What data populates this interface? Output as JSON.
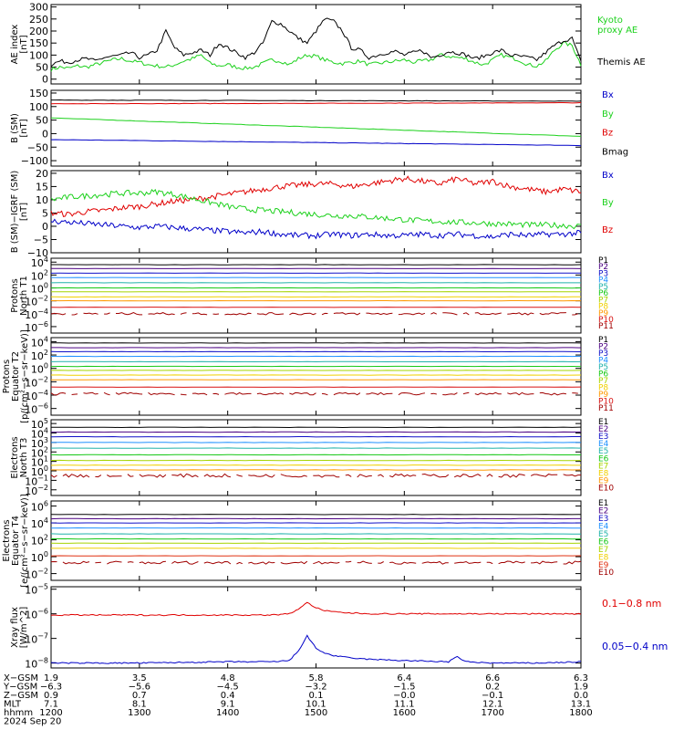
{
  "chart_data": [
    {
      "type": "line",
      "id": "ae",
      "ylabel": [
        "AE index",
        "[nT]"
      ],
      "yticks": [
        "300",
        "250",
        "200",
        "150",
        "100",
        "50",
        "0"
      ],
      "ylim": [
        -20,
        310
      ],
      "series": [
        {
          "name": "Kyoto proxy AE",
          "color": "#1dd11d",
          "x": [
            1200,
            1210,
            1220,
            1230,
            1240,
            1250,
            1260,
            1270,
            1280,
            1290,
            1300,
            1310,
            1320,
            1330,
            1340,
            1350,
            1360,
            1370,
            1380,
            1390,
            1400,
            1410,
            1420,
            1430,
            1440,
            1450,
            1460,
            1470,
            1480,
            1490,
            1500,
            1510,
            1520,
            1530,
            1540,
            1550,
            1560,
            1570,
            1580,
            1590,
            1600,
            1610,
            1620,
            1630,
            1640,
            1650,
            1660,
            1670,
            1680,
            1690,
            1700,
            1710,
            1720,
            1730,
            1740,
            1750,
            1760,
            1770,
            1780,
            1790,
            1800
          ],
          "y": [
            40,
            50,
            45,
            55,
            50,
            60,
            70,
            80,
            85,
            75,
            70,
            60,
            55,
            50,
            60,
            75,
            85,
            100,
            65,
            55,
            60,
            50,
            45,
            50,
            65,
            80,
            75,
            60,
            85,
            100,
            95,
            80,
            70,
            65,
            70,
            75,
            60,
            65,
            70,
            75,
            80,
            70,
            75,
            80,
            100,
            95,
            90,
            85,
            70,
            60,
            80,
            100,
            90,
            80,
            60,
            55,
            75,
            120,
            150,
            140,
            60
          ]
        },
        {
          "name": "Themis AE",
          "color": "#000000",
          "x": [
            1200,
            1210,
            1220,
            1230,
            1240,
            1250,
            1260,
            1270,
            1280,
            1290,
            1300,
            1310,
            1320,
            1330,
            1340,
            1350,
            1360,
            1370,
            1380,
            1390,
            1400,
            1410,
            1420,
            1430,
            1440,
            1450,
            1460,
            1470,
            1480,
            1490,
            1500,
            1510,
            1520,
            1530,
            1540,
            1550,
            1560,
            1570,
            1580,
            1590,
            1600,
            1610,
            1620,
            1630,
            1640,
            1650,
            1660,
            1670,
            1680,
            1690,
            1700,
            1710,
            1720,
            1730,
            1740,
            1750,
            1760,
            1770,
            1780,
            1790,
            1800
          ],
          "y": [
            60,
            75,
            70,
            80,
            85,
            75,
            90,
            95,
            100,
            110,
            90,
            100,
            120,
            200,
            130,
            100,
            110,
            120,
            100,
            150,
            130,
            110,
            90,
            110,
            150,
            240,
            230,
            200,
            170,
            150,
            200,
            250,
            240,
            200,
            130,
            120,
            90,
            100,
            110,
            115,
            100,
            110,
            120,
            90,
            100,
            115,
            110,
            100,
            85,
            95,
            110,
            120,
            100,
            95,
            90,
            80,
            110,
            140,
            160,
            170,
            70
          ]
        }
      ],
      "legend": [
        {
          "text": "Kyoto",
          "color": "#1dd11d"
        },
        {
          "text": "proxy AE",
          "color": "#1dd11d"
        },
        {
          "text": "Themis AE",
          "color": "#000000"
        }
      ]
    },
    {
      "type": "line",
      "id": "bsm",
      "ylabel": [
        "B (SM)",
        "[nT]"
      ],
      "yticks": [
        "150",
        "100",
        "50",
        "0",
        "−50",
        "−100"
      ],
      "ylim": [
        -120,
        160
      ],
      "series": [
        {
          "name": "Bx",
          "color": "#0000c8",
          "x": [
            1200,
            1800
          ],
          "y": [
            -22,
            -44
          ]
        },
        {
          "name": "By",
          "color": "#1dd11d",
          "x": [
            1200,
            1800
          ],
          "y": [
            58,
            -10
          ]
        },
        {
          "name": "Bz",
          "color": "#e00000",
          "x": [
            1200,
            1800
          ],
          "y": [
            110,
            114
          ]
        },
        {
          "name": "Bmag",
          "color": "#000000",
          "x": [
            1200,
            1800
          ],
          "y": [
            124,
            120
          ]
        }
      ],
      "legend": [
        {
          "text": "Bx",
          "color": "#0000c8"
        },
        {
          "text": "By",
          "color": "#1dd11d"
        },
        {
          "text": "Bz",
          "color": "#e00000"
        },
        {
          "text": "Bmag",
          "color": "#000000"
        }
      ]
    },
    {
      "type": "line",
      "id": "bdiff",
      "ylabel": [
        "B (SM)−IGRF (SM)",
        "[nT]"
      ],
      "yticks": [
        "20",
        "15",
        "10",
        "5",
        "0",
        "−5",
        "−10"
      ],
      "ylim": [
        -10,
        21
      ],
      "series": [
        {
          "name": "Bz",
          "color": "#e00000",
          "x": [
            1200,
            1220,
            1240,
            1260,
            1280,
            1300,
            1320,
            1340,
            1360,
            1380,
            1400,
            1420,
            1440,
            1460,
            1480,
            1500,
            1520,
            1540,
            1560,
            1580,
            1600,
            1620,
            1640,
            1660,
            1680,
            1700,
            1720,
            1740,
            1760,
            1780,
            1800
          ],
          "y": [
            5,
            4.5,
            5.5,
            6,
            7,
            7.5,
            8.5,
            9.5,
            10,
            11,
            12,
            13,
            14,
            15,
            15.5,
            16,
            16,
            15,
            16,
            17,
            18,
            17,
            16,
            18,
            16,
            17,
            15,
            14,
            13,
            14,
            13
          ]
        },
        {
          "name": "By",
          "color": "#1dd11d",
          "x": [
            1200,
            1220,
            1240,
            1260,
            1280,
            1300,
            1320,
            1340,
            1360,
            1380,
            1400,
            1420,
            1440,
            1460,
            1480,
            1500,
            1520,
            1540,
            1560,
            1580,
            1600,
            1620,
            1640,
            1660,
            1680,
            1700,
            1720,
            1740,
            1760,
            1780,
            1800
          ],
          "y": [
            10,
            11,
            11.5,
            12,
            12.5,
            12.5,
            13,
            12,
            10.5,
            9,
            7.5,
            6.5,
            6,
            5.5,
            5,
            4.5,
            4,
            4,
            3.5,
            3,
            2.5,
            2,
            1.8,
            1.5,
            1.3,
            1,
            0.8,
            0.5,
            0.5,
            0.3,
            0
          ]
        },
        {
          "name": "Bx",
          "color": "#0000c8",
          "x": [
            1200,
            1220,
            1240,
            1260,
            1280,
            1300,
            1320,
            1340,
            1360,
            1380,
            1400,
            1420,
            1440,
            1460,
            1480,
            1500,
            1520,
            1540,
            1560,
            1580,
            1600,
            1620,
            1640,
            1660,
            1680,
            1700,
            1720,
            1740,
            1760,
            1780,
            1800
          ],
          "y": [
            2,
            1.5,
            1,
            0.5,
            0,
            -0.5,
            0,
            -0.5,
            -1,
            -1.5,
            -2,
            -2.5,
            -2,
            -3,
            -3.5,
            -3.5,
            -3,
            -3.5,
            -3,
            -3.5,
            -3.5,
            -3,
            -3.5,
            -3,
            -3.5,
            -4,
            -3,
            -3.5,
            -3,
            -3,
            -2.5
          ]
        }
      ],
      "legend": [
        {
          "text": "Bx",
          "color": "#0000c8"
        },
        {
          "text": "By",
          "color": "#1dd11d"
        },
        {
          "text": "Bz",
          "color": "#e00000"
        }
      ]
    },
    {
      "type": "line",
      "id": "pt1",
      "ylabel": [
        "Protons",
        "North T1"
      ],
      "yticks": [
        {
          "base": "10",
          "exp": "4"
        },
        {
          "base": "10",
          "exp": "2"
        },
        {
          "base": "10",
          "exp": "0"
        },
        {
          "base": "10",
          "exp": "−2"
        },
        {
          "base": "10",
          "exp": "−4"
        },
        {
          "base": "10",
          "exp": "−6"
        }
      ],
      "ylim": [
        -7,
        4.6
      ],
      "levels": [
        3.6,
        3.0,
        2.3,
        1.6,
        0.8,
        0.0,
        -0.6,
        -1.4,
        -2.0,
        -3.0,
        -4.0
      ],
      "colors": [
        "#000000",
        "#4b0082",
        "#1010c8",
        "#1e90ff",
        "#20b2aa",
        "#16c816",
        "#a6d400",
        "#f0d000",
        "#ff9900",
        "#d81010",
        "#a00000"
      ],
      "legend": [
        "P1",
        "P2",
        "P3",
        "P4",
        "P5",
        "P6",
        "P7",
        "P8",
        "P9",
        "P10",
        "P11"
      ]
    },
    {
      "type": "line",
      "id": "pt2",
      "ylabel": [
        "Protons",
        "Equator T2",
        "[p/(cm²−s−sr−keV)]"
      ],
      "yticks": [
        {
          "base": "10",
          "exp": "4"
        },
        {
          "base": "10",
          "exp": "2"
        },
        {
          "base": "10",
          "exp": "0"
        },
        {
          "base": "10",
          "exp": "−2"
        },
        {
          "base": "10",
          "exp": "−4"
        },
        {
          "base": "10",
          "exp": "−6"
        }
      ],
      "ylim": [
        -7,
        4.6
      ],
      "levels": [
        3.8,
        3.1,
        2.5,
        1.8,
        1.0,
        0.3,
        -0.3,
        -1.0,
        -1.7,
        -2.8,
        -3.8
      ],
      "colors": [
        "#000000",
        "#4b0082",
        "#1010c8",
        "#1e90ff",
        "#20b2aa",
        "#16c816",
        "#a6d400",
        "#f0d000",
        "#ff9900",
        "#d81010",
        "#a00000"
      ],
      "legend": [
        "P1",
        "P2",
        "P3",
        "P4",
        "P5",
        "P6",
        "P7",
        "P8",
        "P9",
        "P10",
        "P11"
      ]
    },
    {
      "type": "line",
      "id": "et3",
      "ylabel": [
        "Electrons",
        "North T3"
      ],
      "yticks": [
        {
          "base": "10",
          "exp": "5"
        },
        {
          "base": "10",
          "exp": "4"
        },
        {
          "base": "10",
          "exp": "3"
        },
        {
          "base": "10",
          "exp": "2"
        },
        {
          "base": "10",
          "exp": "1"
        },
        {
          "base": "10",
          "exp": "0"
        },
        {
          "base": "10",
          "exp": "−1"
        },
        {
          "base": "10",
          "exp": "−2"
        }
      ],
      "ylim": [
        -2.6,
        5.4
      ],
      "levels": [
        4.6,
        4.1,
        3.6,
        3.0,
        2.4,
        1.7,
        1.1,
        0.6,
        0.1,
        -0.5
      ],
      "colors": [
        "#000000",
        "#4b0082",
        "#1010c8",
        "#1e90ff",
        "#20b2aa",
        "#16c816",
        "#a6d400",
        "#f0d000",
        "#ff9900",
        "#a00000"
      ],
      "legend": [
        "E1",
        "E2",
        "E3",
        "E4",
        "E5",
        "E6",
        "E7",
        "E8",
        "E9",
        "E10"
      ]
    },
    {
      "type": "line",
      "id": "et4",
      "ylabel": [
        "Electrons",
        "Equator T4",
        "[e/(cm²−s−sr−keV)]"
      ],
      "yticks": [
        {
          "base": "10",
          "exp": "6"
        },
        {
          "base": "10",
          "exp": "4"
        },
        {
          "base": "10",
          "exp": "2"
        },
        {
          "base": "10",
          "exp": "0"
        },
        {
          "base": "10",
          "exp": "−2"
        }
      ],
      "ylim": [
        -2.8,
        6.6
      ],
      "levels": [
        5.0,
        4.5,
        4.0,
        3.4,
        2.7,
        2.1,
        1.6,
        1.0,
        0.1,
        -0.7
      ],
      "colors": [
        "#000000",
        "#4b0082",
        "#1010c8",
        "#1e90ff",
        "#20b2aa",
        "#16c816",
        "#a6d400",
        "#f0d000",
        "#e03010",
        "#a00000"
      ],
      "legend": [
        "E1",
        "E2",
        "E3",
        "E4",
        "E5",
        "E6",
        "E7",
        "E8",
        "E9",
        "E10"
      ]
    },
    {
      "type": "line",
      "id": "xray",
      "ylabel": [
        "Xray flux",
        "[W/m^2]"
      ],
      "yticks": [
        {
          "base": "10",
          "exp": "−5"
        },
        {
          "base": "10",
          "exp": "−6"
        },
        {
          "base": "10",
          "exp": "−7"
        },
        {
          "base": "10",
          "exp": "−8"
        }
      ],
      "ylim": [
        -8.2,
        -4.9
      ],
      "series": [
        {
          "name": "0.1−0.8 nm",
          "color": "#e00000",
          "x": [
            1200,
            1300,
            1400,
            1450,
            1470,
            1480,
            1490,
            1500,
            1510,
            1530,
            1560,
            1600,
            1650,
            1700,
            1750,
            1800
          ],
          "y": [
            -6.05,
            -6.05,
            -6.05,
            -6.05,
            -6.0,
            -5.8,
            -5.55,
            -5.75,
            -5.88,
            -5.95,
            -6.0,
            -6.0,
            -6.0,
            -6.0,
            -6.0,
            -6.0
          ]
        },
        {
          "name": "0.05−0.4 nm",
          "color": "#0000c8",
          "x": [
            1200,
            1300,
            1400,
            1450,
            1470,
            1480,
            1490,
            1500,
            1510,
            1520,
            1540,
            1560,
            1600,
            1650,
            1660,
            1670,
            1700,
            1750,
            1800
          ],
          "y": [
            -8.0,
            -8.0,
            -7.95,
            -7.95,
            -7.9,
            -7.5,
            -6.9,
            -7.4,
            -7.6,
            -7.7,
            -7.8,
            -7.85,
            -7.9,
            -7.95,
            -7.75,
            -7.95,
            -8.0,
            -8.0,
            -7.95
          ]
        }
      ],
      "legend": [
        {
          "text": "0.1−0.8 nm",
          "color": "#e00000"
        },
        {
          "text": "0.05−0.4 nm",
          "color": "#0000c8"
        }
      ]
    }
  ],
  "xaxis": {
    "ticks": [
      1200,
      1300,
      1400,
      1500,
      1600,
      1700,
      1800
    ],
    "rows": [
      {
        "label": "X−GSM",
        "values": [
          "1.9",
          "3.5",
          "4.8",
          "5.8",
          "6.4",
          "6.6",
          "6.3"
        ]
      },
      {
        "label": "Y−GSM",
        "values": [
          "−6.3",
          "−5.6",
          "−4.5",
          "−3.2",
          "−1.5",
          "0.2",
          "1.9"
        ]
      },
      {
        "label": "Z−GSM",
        "values": [
          "0.9",
          "0.7",
          "0.4",
          "0.1",
          "−0.0",
          "−0.1",
          "0.0"
        ]
      },
      {
        "label": "MLT",
        "values": [
          "7.1",
          "8.1",
          "9.1",
          "10.1",
          "11.1",
          "12.1",
          "13.1"
        ]
      },
      {
        "label": "hhmm",
        "values": [
          "1200",
          "1300",
          "1400",
          "1500",
          "1600",
          "1700",
          "1800"
        ]
      }
    ],
    "date": "2024 Sep 20"
  }
}
